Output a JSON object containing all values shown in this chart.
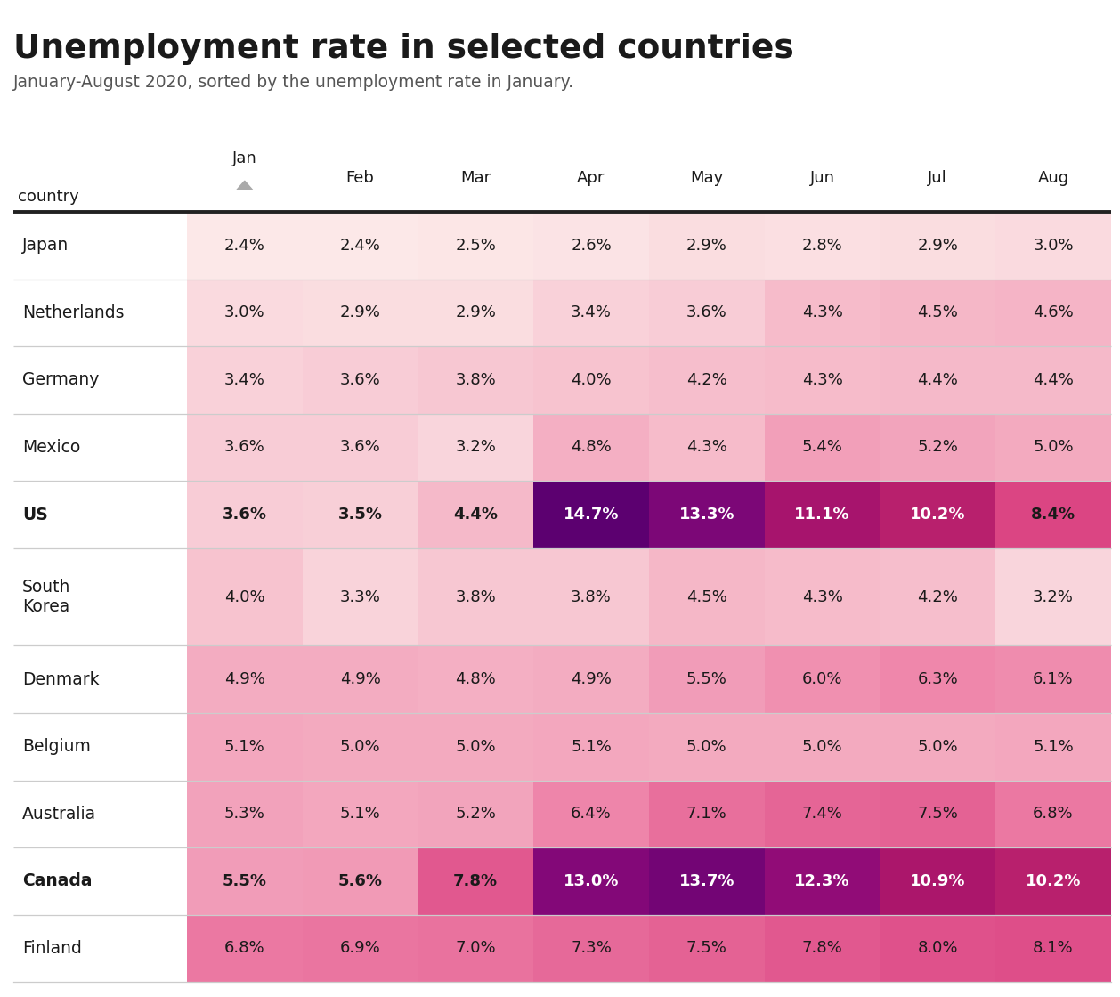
{
  "title": "Unemployment rate in selected countries",
  "subtitle": "January-August 2020, sorted by the unemployment rate in January.",
  "months": [
    "Jan",
    "Feb",
    "Mar",
    "Apr",
    "May",
    "Jun",
    "Jul",
    "Aug"
  ],
  "countries": [
    "Japan",
    "Netherlands",
    "Germany",
    "Mexico",
    "US",
    "South\nKorea",
    "Denmark",
    "Belgium",
    "Australia",
    "Canada",
    "Finland"
  ],
  "bold_rows": [
    4,
    9
  ],
  "values": [
    [
      2.4,
      2.4,
      2.5,
      2.6,
      2.9,
      2.8,
      2.9,
      3.0
    ],
    [
      3.0,
      2.9,
      2.9,
      3.4,
      3.6,
      4.3,
      4.5,
      4.6
    ],
    [
      3.4,
      3.6,
      3.8,
      4.0,
      4.2,
      4.3,
      4.4,
      4.4
    ],
    [
      3.6,
      3.6,
      3.2,
      4.8,
      4.3,
      5.4,
      5.2,
      5.0
    ],
    [
      3.6,
      3.5,
      4.4,
      14.7,
      13.3,
      11.1,
      10.2,
      8.4
    ],
    [
      4.0,
      3.3,
      3.8,
      3.8,
      4.5,
      4.3,
      4.2,
      3.2
    ],
    [
      4.9,
      4.9,
      4.8,
      4.9,
      5.5,
      6.0,
      6.3,
      6.1
    ],
    [
      5.1,
      5.0,
      5.0,
      5.1,
      5.0,
      5.0,
      5.0,
      5.1
    ],
    [
      5.3,
      5.1,
      5.2,
      6.4,
      7.1,
      7.4,
      7.5,
      6.8
    ],
    [
      5.5,
      5.6,
      7.8,
      13.0,
      13.7,
      12.3,
      10.9,
      10.2
    ],
    [
      6.8,
      6.9,
      7.0,
      7.3,
      7.5,
      7.8,
      8.0,
      8.1
    ]
  ],
  "row_heights": [
    1,
    1,
    1,
    1,
    1,
    1.45,
    1,
    1,
    1,
    1,
    1
  ],
  "vmin": 2.4,
  "vmax": 14.7,
  "bg_color": "#ffffff",
  "header_line_color": "#222222",
  "row_separator_color": "#cccccc",
  "text_dark": "#1a1a1a",
  "text_light": "#ffffff",
  "threshold_white_text": 8.8,
  "colormap_stops": [
    "#fce8e8",
    "#f5b8c8",
    "#ee82a8",
    "#d94080",
    "#b01868",
    "#8b0a7a",
    "#5c0070"
  ]
}
